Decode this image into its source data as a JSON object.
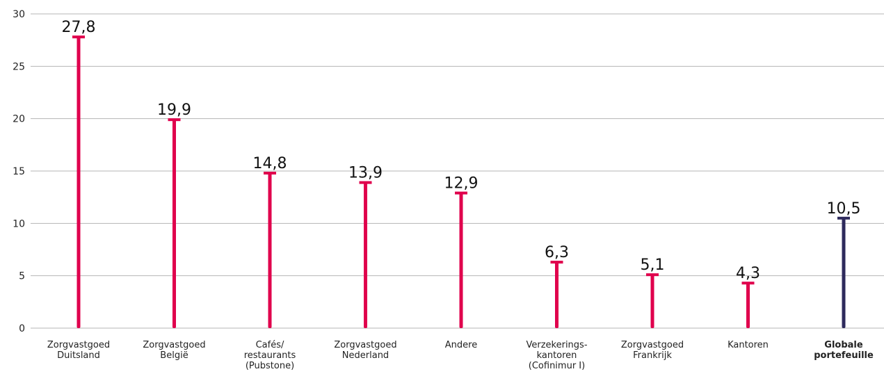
{
  "chart_data": {
    "type": "bar",
    "title": "",
    "xlabel": "",
    "ylabel": "",
    "ylim": [
      0,
      30
    ],
    "yticks": [
      0,
      5,
      10,
      15,
      20,
      25,
      30
    ],
    "grid": true,
    "legend": "none",
    "categories": [
      [
        "Zorgvastgoed",
        "Duitsland"
      ],
      [
        "Zorgvastgoed",
        "België"
      ],
      [
        "Cafés/",
        "restaurants",
        "(Pubstone)"
      ],
      [
        "Zorgvastgoed",
        "Nederland"
      ],
      [
        "Andere"
      ],
      [
        "Verzekerings-",
        "kantoren",
        "(Cofinimur I)"
      ],
      [
        "Zorgvastgoed",
        "Frankrijk"
      ],
      [
        "Kantoren"
      ],
      [
        "Globale",
        "portefeuille"
      ]
    ],
    "values": [
      27.8,
      19.9,
      14.8,
      13.9,
      12.9,
      6.3,
      5.1,
      4.3,
      10.5
    ],
    "value_labels": [
      "27,8",
      "19,9",
      "14,8",
      "13,9",
      "12,9",
      "6,3",
      "5,1",
      "4,3",
      "10,5"
    ],
    "highlight_index": 8,
    "colors": {
      "bar": "#e0004d",
      "highlight": "#2e2a5c",
      "grid": "#b5b5b5",
      "text": "#222222"
    }
  }
}
